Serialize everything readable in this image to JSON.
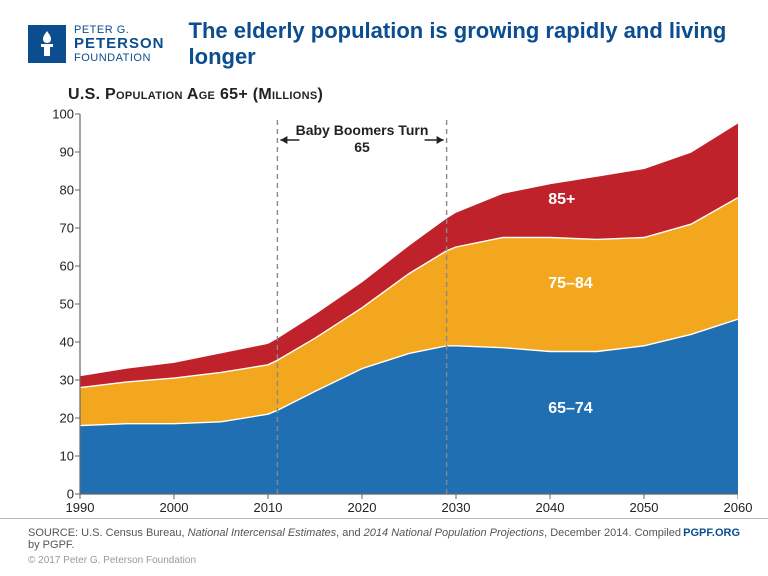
{
  "logo": {
    "line1": "PETER G.",
    "line2": "PETERSON",
    "line3": "FOUNDATION"
  },
  "title": "The elderly population is growing rapidly and living longer",
  "subtitle": "U.S. Population Age 65+ (Millions)",
  "chart": {
    "type": "area-stacked",
    "background_color": "#ffffff",
    "xlim": [
      1990,
      2060
    ],
    "ylim": [
      0,
      100
    ],
    "ytick_step": 10,
    "xtick_step": 10,
    "axis_color": "#666666",
    "tick_fontsize": 13,
    "series": [
      {
        "name": "65–74",
        "label": "65–74",
        "color": "#1f6fb2",
        "label_pos": {
          "x": 2043,
          "y": 22
        },
        "values": [
          {
            "x": 1990,
            "y": 18
          },
          {
            "x": 1995,
            "y": 18.5
          },
          {
            "x": 2000,
            "y": 18.5
          },
          {
            "x": 2005,
            "y": 19
          },
          {
            "x": 2010,
            "y": 21
          },
          {
            "x": 2011,
            "y": 22
          },
          {
            "x": 2015,
            "y": 27
          },
          {
            "x": 2020,
            "y": 33
          },
          {
            "x": 2025,
            "y": 37
          },
          {
            "x": 2029,
            "y": 39
          },
          {
            "x": 2030,
            "y": 39
          },
          {
            "x": 2035,
            "y": 38.5
          },
          {
            "x": 2040,
            "y": 37.5
          },
          {
            "x": 2045,
            "y": 37.5
          },
          {
            "x": 2050,
            "y": 39
          },
          {
            "x": 2055,
            "y": 42
          },
          {
            "x": 2060,
            "y": 46
          }
        ]
      },
      {
        "name": "75–84",
        "label": "75–84",
        "color": "#f3a71f",
        "label_pos": {
          "x": 2043,
          "y": 55
        },
        "values": [
          {
            "x": 1990,
            "y": 10
          },
          {
            "x": 1995,
            "y": 11
          },
          {
            "x": 2000,
            "y": 12
          },
          {
            "x": 2005,
            "y": 13
          },
          {
            "x": 2010,
            "y": 13
          },
          {
            "x": 2011,
            "y": 13.2
          },
          {
            "x": 2015,
            "y": 14
          },
          {
            "x": 2020,
            "y": 16
          },
          {
            "x": 2025,
            "y": 21
          },
          {
            "x": 2029,
            "y": 25
          },
          {
            "x": 2030,
            "y": 26
          },
          {
            "x": 2035,
            "y": 29
          },
          {
            "x": 2040,
            "y": 30
          },
          {
            "x": 2045,
            "y": 29.5
          },
          {
            "x": 2050,
            "y": 28.5
          },
          {
            "x": 2055,
            "y": 29
          },
          {
            "x": 2060,
            "y": 32
          }
        ]
      },
      {
        "name": "85+",
        "label": "85+",
        "color": "#c0222b",
        "label_pos": {
          "x": 2043,
          "y": 77
        },
        "values": [
          {
            "x": 1990,
            "y": 3
          },
          {
            "x": 1995,
            "y": 3.5
          },
          {
            "x": 2000,
            "y": 4
          },
          {
            "x": 2005,
            "y": 5
          },
          {
            "x": 2010,
            "y": 5.5
          },
          {
            "x": 2011,
            "y": 5.7
          },
          {
            "x": 2015,
            "y": 6.2
          },
          {
            "x": 2020,
            "y": 6.7
          },
          {
            "x": 2025,
            "y": 7.3
          },
          {
            "x": 2029,
            "y": 8.5
          },
          {
            "x": 2030,
            "y": 9
          },
          {
            "x": 2035,
            "y": 11.5
          },
          {
            "x": 2040,
            "y": 14
          },
          {
            "x": 2045,
            "y": 16.5
          },
          {
            "x": 2050,
            "y": 18
          },
          {
            "x": 2055,
            "y": 18.8
          },
          {
            "x": 2060,
            "y": 19.5
          }
        ]
      }
    ],
    "annotation": {
      "text_line1": "Baby Boomers Turn",
      "text_line2": "65",
      "x_start": 2011,
      "x_end": 2029,
      "line_color": "#888888",
      "line_dash": "5,4",
      "fontsize": 14
    },
    "stroke_between": "#ffffff",
    "stroke_width_between": 1.4
  },
  "footer": {
    "source_prefix": "SOURCE: U.S. Census Bureau, ",
    "source_em1": "National Intercensal Estimates",
    "source_mid": ", and ",
    "source_em2": "2014 National Population Projections",
    "source_suffix": ", December 2014. Compiled by PGPF.",
    "copyright": "© 2017 Peter G. Peterson Foundation",
    "site": "PGPF.ORG"
  }
}
